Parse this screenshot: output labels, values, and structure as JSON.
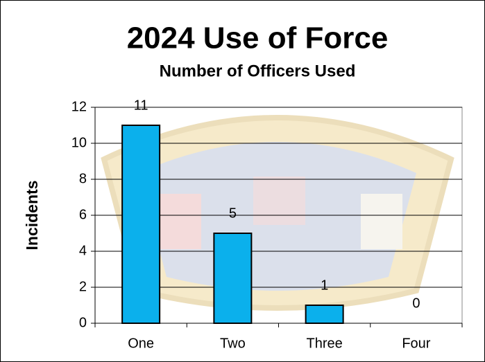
{
  "chart_data": {
    "type": "bar",
    "title": "2024 Use of Force",
    "subtitle": "Number of Officers Used",
    "y_label": "Incidents",
    "categories": [
      "One",
      "Two",
      "Three",
      "Four"
    ],
    "values": [
      11,
      5,
      1,
      0
    ],
    "color": "#0bb0ec",
    "ylim": [
      0,
      12
    ],
    "yticks": [
      0,
      2,
      4,
      6,
      8,
      10,
      12
    ],
    "grid": true
  }
}
